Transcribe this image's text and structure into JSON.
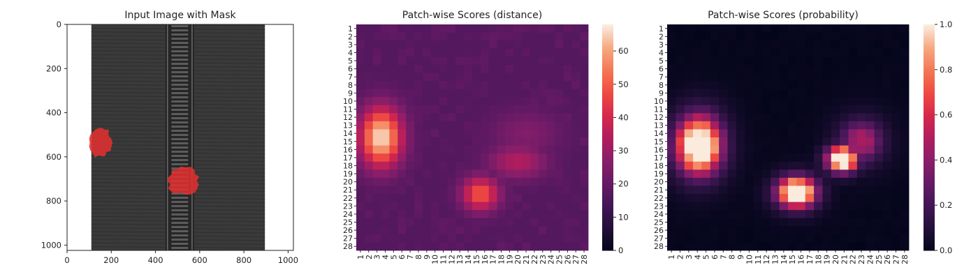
{
  "chart_data": [
    {
      "type": "image",
      "title": "Input Image with Mask",
      "xlim": [
        0,
        1024
      ],
      "ylim": [
        1024,
        0
      ],
      "xticks": [
        "0",
        "200",
        "400",
        "600",
        "800",
        "1000"
      ],
      "yticks": [
        "0",
        "200",
        "400",
        "600",
        "800",
        "1000"
      ],
      "xtick_values": [
        0,
        200,
        400,
        600,
        800,
        1000
      ],
      "ytick_values": [
        0,
        200,
        400,
        600,
        800,
        1000
      ],
      "image": {
        "background": "#ffffff",
        "fabric_x_range": [
          110,
          895
        ],
        "fabric_color": "#3a3a3a",
        "zipper_x_range": [
          445,
          575
        ],
        "mask_color": "#e03030"
      },
      "masks": [
        {
          "id": "left-defect",
          "center": [
            150,
            535
          ],
          "extent": [
            [
              110,
              455
            ],
            [
              230,
              610
            ]
          ]
        },
        {
          "id": "center-defect",
          "center": [
            525,
            708
          ],
          "extent": [
            [
              435,
              640
            ],
            [
              600,
              780
            ]
          ]
        }
      ]
    },
    {
      "type": "heatmap",
      "title": "Patch-wise Scores (distance)",
      "rows": 28,
      "cols": 28,
      "row_labels": [
        "1",
        "2",
        "3",
        "4",
        "5",
        "6",
        "7",
        "8",
        "9",
        "10",
        "11",
        "12",
        "13",
        "14",
        "15",
        "16",
        "17",
        "18",
        "19",
        "20",
        "21",
        "22",
        "23",
        "24",
        "25",
        "26",
        "27",
        "28"
      ],
      "col_labels": [
        "1",
        "2",
        "3",
        "4",
        "5",
        "6",
        "7",
        "8",
        "9",
        "10",
        "11",
        "12",
        "13",
        "14",
        "15",
        "16",
        "17",
        "18",
        "19",
        "20",
        "21",
        "22",
        "23",
        "24",
        "25",
        "26",
        "27",
        "28"
      ],
      "vmin": 0,
      "vmax": 68,
      "colorbar_ticks": [
        "0",
        "10",
        "20",
        "30",
        "40",
        "50",
        "60"
      ],
      "colorbar_values": [
        0,
        10,
        20,
        30,
        40,
        50,
        60
      ],
      "colormap": "rocket",
      "baseline": 17,
      "hotspots": [
        {
          "row": 14.5,
          "col": 3.5,
          "peak": 67,
          "spread": [
            2.6,
            1.8
          ]
        },
        {
          "row": 21.5,
          "col": 15.5,
          "peak": 50,
          "spread": [
            1.5,
            1.6
          ]
        },
        {
          "row": 17.5,
          "col": 20.0,
          "peak": 35,
          "spread": [
            1.5,
            2.5
          ]
        },
        {
          "row": 14.0,
          "col": 21.0,
          "peak": 26,
          "spread": [
            2.0,
            3.0
          ]
        }
      ]
    },
    {
      "type": "heatmap",
      "title": "Patch-wise Scores (probability)",
      "rows": 28,
      "cols": 28,
      "row_labels": [
        "1",
        "2",
        "3",
        "4",
        "5",
        "6",
        "7",
        "8",
        "9",
        "10",
        "11",
        "12",
        "13",
        "14",
        "15",
        "16",
        "17",
        "18",
        "19",
        "20",
        "21",
        "22",
        "23",
        "24",
        "25",
        "26",
        "27",
        "28"
      ],
      "col_labels": [
        "1",
        "2",
        "3",
        "4",
        "5",
        "6",
        "7",
        "8",
        "9",
        "10",
        "11",
        "12",
        "13",
        "14",
        "15",
        "16",
        "17",
        "18",
        "19",
        "20",
        "21",
        "22",
        "23",
        "24",
        "25",
        "26",
        "27",
        "28"
      ],
      "vmin": 0,
      "vmax": 1,
      "colorbar_ticks": [
        "0.0",
        "0.2",
        "0.4",
        "0.6",
        "0.8",
        "1.0"
      ],
      "colorbar_values": [
        0,
        0.2,
        0.4,
        0.6,
        0.8,
        1.0
      ],
      "colormap": "rocket",
      "blobs": [
        {
          "row": 15.5,
          "col": 4.2,
          "peak": 1.0,
          "spread": [
            4.5,
            3.3
          ],
          "power": 4
        },
        {
          "row": 21.3,
          "col": 15.5,
          "peak": 1.0,
          "spread": [
            2.4,
            2.8
          ],
          "power": 4
        },
        {
          "row": 17.2,
          "col": 20.8,
          "peak": 1.0,
          "spread": [
            2.0,
            2.2
          ],
          "power": 4
        },
        {
          "row": 15.0,
          "col": 23.0,
          "peak": 0.45,
          "spread": [
            3.0,
            2.8
          ],
          "power": 3
        }
      ]
    }
  ]
}
